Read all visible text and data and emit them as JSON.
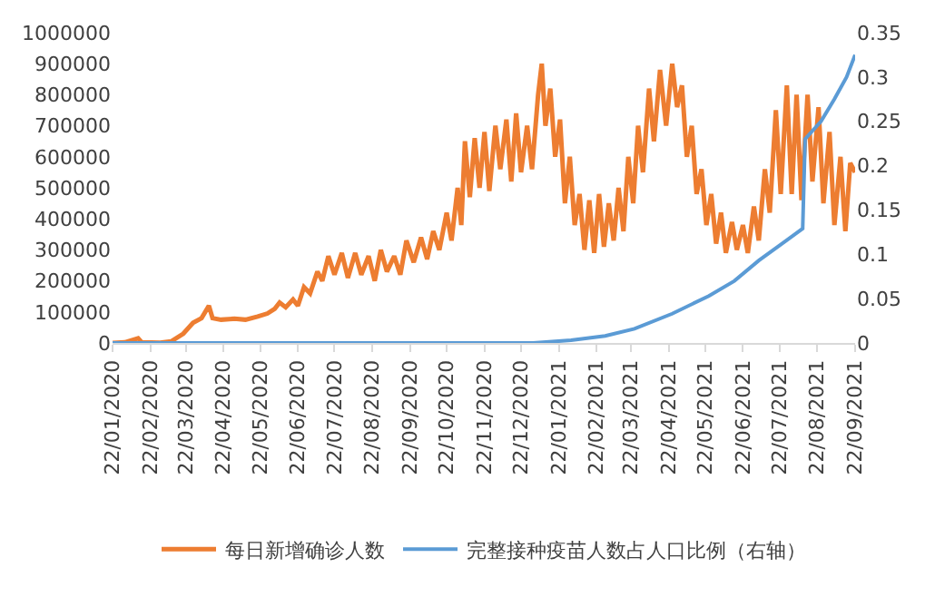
{
  "chart_data": {
    "type": "line",
    "legend": "bottom",
    "marker": "none",
    "xlim": [
      "2020-01-22",
      "2021-09-22"
    ],
    "xticks": [
      {
        "value": "2020-01-22",
        "label": "22/01/2020"
      },
      {
        "value": "2020-02-22",
        "label": "22/02/2020"
      },
      {
        "value": "2020-03-22",
        "label": "22/03/2020"
      },
      {
        "value": "2020-04-22",
        "label": "22/04/2020"
      },
      {
        "value": "2020-05-22",
        "label": "22/05/2020"
      },
      {
        "value": "2020-06-22",
        "label": "22/06/2020"
      },
      {
        "value": "2020-07-22",
        "label": "22/07/2020"
      },
      {
        "value": "2020-08-22",
        "label": "22/08/2020"
      },
      {
        "value": "2020-09-22",
        "label": "22/09/2020"
      },
      {
        "value": "2020-10-22",
        "label": "22/10/2020"
      },
      {
        "value": "2020-11-22",
        "label": "22/11/2020"
      },
      {
        "value": "2020-12-22",
        "label": "22/12/2020"
      },
      {
        "value": "2021-01-22",
        "label": "22/01/2021"
      },
      {
        "value": "2021-02-22",
        "label": "22/02/2021"
      },
      {
        "value": "2021-03-22",
        "label": "22/03/2021"
      },
      {
        "value": "2021-04-22",
        "label": "22/04/2021"
      },
      {
        "value": "2021-05-22",
        "label": "22/05/2021"
      },
      {
        "value": "2021-06-22",
        "label": "22/06/2021"
      },
      {
        "value": "2021-07-22",
        "label": "22/07/2021"
      },
      {
        "value": "2021-08-22",
        "label": "22/08/2021"
      },
      {
        "value": "2021-09-22",
        "label": "22/09/2021"
      }
    ],
    "ylim": [
      0,
      1000000
    ],
    "yticks": [
      0,
      100000,
      200000,
      300000,
      400000,
      500000,
      600000,
      700000,
      800000,
      900000,
      1000000
    ],
    "y2lim": [
      0,
      0.35
    ],
    "y2ticks": [
      0,
      0.05,
      0.1,
      0.15,
      0.2,
      0.25,
      0.3,
      0.35
    ],
    "series": [
      {
        "name": "每日新增确诊人数",
        "color": "#ed7d31",
        "x": [
          "2020-01-22",
          "2020-02-01",
          "2020-02-12",
          "2020-02-15",
          "2020-03-01",
          "2020-03-10",
          "2020-03-20",
          "2020-03-28",
          "2020-04-04",
          "2020-04-10",
          "2020-04-13",
          "2020-04-20",
          "2020-05-01",
          "2020-05-10",
          "2020-05-20",
          "2020-05-28",
          "2020-06-03",
          "2020-06-07",
          "2020-06-12",
          "2020-06-18",
          "2020-06-22",
          "2020-06-27",
          "2020-07-02",
          "2020-07-08",
          "2020-07-12",
          "2020-07-17",
          "2020-07-22",
          "2020-07-28",
          "2020-08-02",
          "2020-08-08",
          "2020-08-13",
          "2020-08-19",
          "2020-08-24",
          "2020-08-29",
          "2020-09-03",
          "2020-09-09",
          "2020-09-14",
          "2020-09-19",
          "2020-09-25",
          "2020-10-01",
          "2020-10-06",
          "2020-10-11",
          "2020-10-16",
          "2020-10-22",
          "2020-10-26",
          "2020-10-31",
          "2020-11-03",
          "2020-11-06",
          "2020-11-10",
          "2020-11-14",
          "2020-11-18",
          "2020-11-22",
          "2020-11-26",
          "2020-12-01",
          "2020-12-05",
          "2020-12-10",
          "2020-12-14",
          "2020-12-18",
          "2020-12-22",
          "2020-12-27",
          "2020-12-31",
          "2021-01-05",
          "2021-01-08",
          "2021-01-11",
          "2021-01-15",
          "2021-01-19",
          "2021-01-23",
          "2021-01-27",
          "2021-01-31",
          "2021-02-04",
          "2021-02-08",
          "2021-02-12",
          "2021-02-16",
          "2021-02-20",
          "2021-02-24",
          "2021-02-28",
          "2021-03-04",
          "2021-03-08",
          "2021-03-12",
          "2021-03-16",
          "2021-03-20",
          "2021-03-24",
          "2021-03-28",
          "2021-04-01",
          "2021-04-06",
          "2021-04-10",
          "2021-04-15",
          "2021-04-20",
          "2021-04-25",
          "2021-04-29",
          "2021-05-03",
          "2021-05-07",
          "2021-05-11",
          "2021-05-15",
          "2021-05-19",
          "2021-05-23",
          "2021-05-27",
          "2021-05-31",
          "2021-06-04",
          "2021-06-08",
          "2021-06-13",
          "2021-06-17",
          "2021-06-22",
          "2021-06-26",
          "2021-07-01",
          "2021-07-05",
          "2021-07-10",
          "2021-07-14",
          "2021-07-19",
          "2021-07-23",
          "2021-07-28",
          "2021-08-01",
          "2021-08-05",
          "2021-08-09",
          "2021-08-14",
          "2021-08-18",
          "2021-08-23",
          "2021-08-27",
          "2021-09-01",
          "2021-09-05",
          "2021-09-10",
          "2021-09-14",
          "2021-09-18",
          "2021-09-22"
        ],
        "values": [
          0,
          2000,
          15000,
          2000,
          1000,
          5000,
          30000,
          65000,
          80000,
          120000,
          80000,
          75000,
          78000,
          75000,
          85000,
          95000,
          110000,
          130000,
          115000,
          140000,
          120000,
          180000,
          160000,
          230000,
          200000,
          280000,
          220000,
          290000,
          210000,
          290000,
          220000,
          280000,
          200000,
          300000,
          230000,
          280000,
          220000,
          330000,
          260000,
          340000,
          270000,
          360000,
          300000,
          420000,
          330000,
          500000,
          380000,
          650000,
          470000,
          660000,
          500000,
          680000,
          490000,
          700000,
          560000,
          720000,
          520000,
          740000,
          550000,
          700000,
          560000,
          800000,
          900000,
          700000,
          820000,
          600000,
          720000,
          450000,
          600000,
          380000,
          480000,
          300000,
          460000,
          290000,
          480000,
          310000,
          450000,
          330000,
          500000,
          360000,
          600000,
          450000,
          700000,
          550000,
          820000,
          650000,
          880000,
          700000,
          900000,
          760000,
          830000,
          600000,
          700000,
          480000,
          560000,
          380000,
          480000,
          320000,
          420000,
          290000,
          390000,
          300000,
          380000,
          290000,
          440000,
          330000,
          560000,
          420000,
          750000,
          480000,
          830000,
          480000,
          800000,
          460000,
          800000,
          520000,
          760000,
          450000,
          680000,
          380000,
          600000,
          360000,
          580000,
          550000
        ]
      },
      {
        "name": "完整接种疫苗人数占人口比例（右轴）",
        "color": "#5b9bd5",
        "axis": "y2",
        "x": [
          "2020-01-22",
          "2021-01-01",
          "2021-02-01",
          "2021-03-01",
          "2021-03-25",
          "2021-04-25",
          "2021-05-25",
          "2021-06-15",
          "2021-07-05",
          "2021-07-25",
          "2021-08-10",
          "2021-08-12",
          "2021-08-25",
          "2021-09-05",
          "2021-09-15",
          "2021-09-22"
        ],
        "values": [
          0,
          0,
          0.003,
          0.008,
          0.016,
          0.033,
          0.053,
          0.07,
          0.093,
          0.113,
          0.129,
          0.23,
          0.25,
          0.275,
          0.3,
          0.325
        ]
      }
    ]
  }
}
